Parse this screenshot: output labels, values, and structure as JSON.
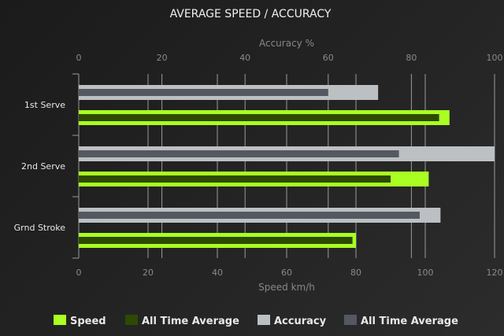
{
  "chart_data": {
    "type": "bar",
    "orientation": "horizontal",
    "title": "AVERAGE SPEED / ACCURACY",
    "categories": [
      "1st Serve",
      "2nd Serve",
      "Grnd Stroke"
    ],
    "top_axis": {
      "label": "Accuracy %",
      "range": [
        0,
        100
      ],
      "ticks": [
        "0",
        "20",
        "40",
        "60",
        "80",
        "100"
      ]
    },
    "bottom_axis": {
      "label": "Speed km/h",
      "range": [
        0,
        120
      ],
      "ticks": [
        "0",
        "20",
        "40",
        "60",
        "80",
        "100",
        "120"
      ]
    },
    "grid": true,
    "legend_position": "bottom",
    "series": [
      {
        "name": "Speed",
        "axis": "bottom",
        "color": "#aaff22",
        "values": [
          107,
          101,
          80
        ]
      },
      {
        "name": "All Time Average",
        "axis": "bottom",
        "color": "#2d4a00",
        "values": [
          104,
          90,
          79
        ]
      },
      {
        "name": "Accuracy",
        "axis": "top",
        "color": "#bcc0c2",
        "values": [
          72,
          100,
          87
        ]
      },
      {
        "name": "All Time Average",
        "axis": "top",
        "color": "#545860",
        "values": [
          60,
          77,
          82
        ]
      }
    ]
  }
}
